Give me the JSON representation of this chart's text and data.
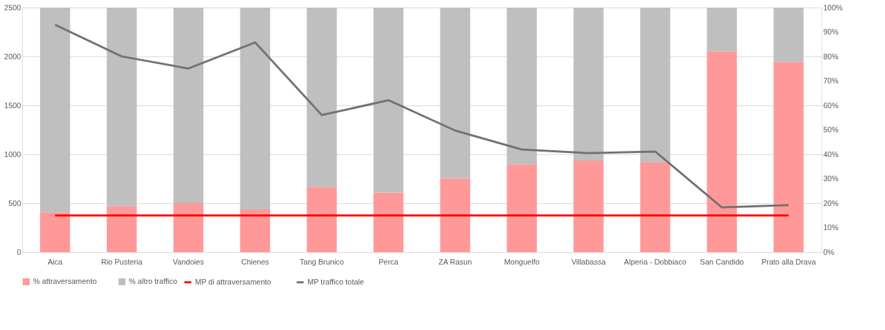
{
  "chart_data": {
    "type": "bar",
    "stacked": true,
    "categories": [
      "Aica",
      "Rio Pusteria",
      "Vandoies",
      "Chienes",
      "Tang Brunico",
      "Perca",
      "ZA Rasun",
      "Monguelfo",
      "Villabassa",
      "Alperia - Dobbiaco",
      "San Candido",
      "Prato alla Drava"
    ],
    "series": [
      {
        "name": "% attraversamento",
        "color": "#ff9999",
        "axis": "y2",
        "values": [
          16.3,
          18.8,
          20,
          17.5,
          26.7,
          24.4,
          30.3,
          36,
          37.5,
          36.8,
          82.1,
          77.8
        ]
      },
      {
        "name": "% altro traffico",
        "color": "#bfbfbf",
        "axis": "y2",
        "values": [
          83.7,
          81.2,
          80,
          82.5,
          73.3,
          75.6,
          69.7,
          64,
          62.5,
          63.2,
          17.9,
          22.2
        ]
      },
      {
        "name": "MP di attraversamento",
        "type": "line",
        "color": "#ff0000",
        "values": [
          375,
          375,
          375,
          375,
          375,
          375,
          375,
          375,
          375,
          375,
          375,
          375
        ]
      },
      {
        "name": "MP traffico totale",
        "type": "line",
        "color": "#767171",
        "values": [
          2325,
          2001,
          1877,
          2144,
          1401,
          1553,
          1243,
          1049,
          1012,
          1029,
          457,
          480
        ]
      }
    ],
    "ylim": [
      0,
      2500
    ],
    "yticks": [
      0,
      500,
      1000,
      1500,
      2000,
      2500
    ],
    "y2lim": [
      0,
      100
    ],
    "y2ticks": [
      {
        "value": 0,
        "label": "0%"
      },
      {
        "value": 10,
        "label": "10%"
      },
      {
        "value": 20,
        "label": "20%"
      },
      {
        "value": 30,
        "label": "30%"
      },
      {
        "value": 40,
        "label": "40%"
      },
      {
        "value": 50,
        "label": "50%"
      },
      {
        "value": 60,
        "label": "60%"
      },
      {
        "value": 70,
        "label": "70%"
      },
      {
        "value": 80,
        "label": "80%"
      },
      {
        "value": 90,
        "label": "90%"
      },
      {
        "value": 100,
        "label": "100%"
      }
    ],
    "grid": "y",
    "legend": "bottom",
    "marker": "none",
    "line_style": "solid"
  }
}
